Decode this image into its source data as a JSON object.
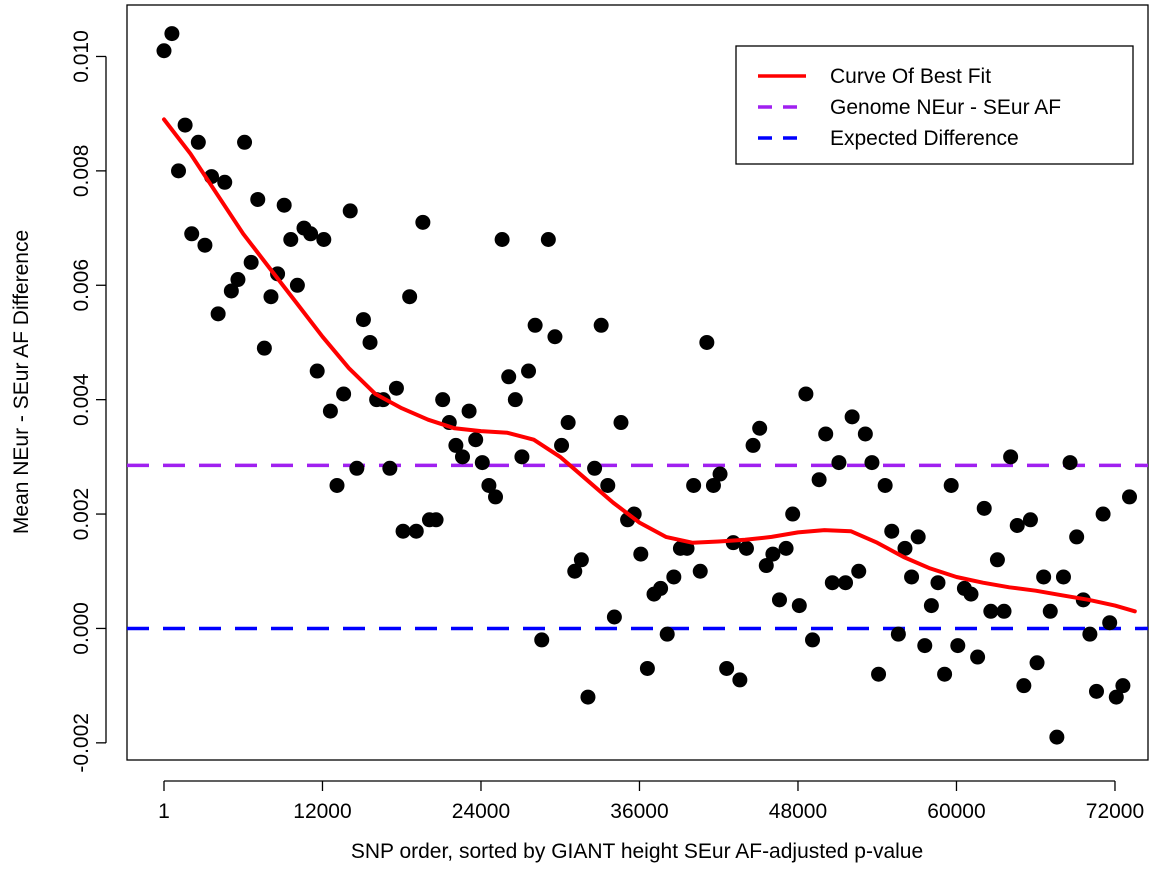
{
  "chart_data": {
    "type": "scatter",
    "title": "",
    "xlabel": "SNP order, sorted by GIANT height SEur AF-adjusted p-value",
    "ylabel": "Mean NEur - SEur AF Difference",
    "xlim": [
      -2800,
      74500
    ],
    "ylim": [
      -0.0023,
      0.0109
    ],
    "x_ticks": [
      1,
      12000,
      24000,
      36000,
      48000,
      60000,
      72000
    ],
    "x_tick_labels": [
      "1",
      "12000",
      "24000",
      "36000",
      "48000",
      "60000",
      "72000"
    ],
    "y_ticks": [
      -0.002,
      0.0,
      0.002,
      0.004,
      0.006,
      0.008,
      0.01
    ],
    "y_tick_labels": [
      "-0.002",
      "0.000",
      "0.002",
      "0.004",
      "0.006",
      "0.008",
      "0.010"
    ],
    "grid": false,
    "legend_position": "top-right",
    "series": [
      {
        "name": "Curve Of Best Fit",
        "kind": "line",
        "color": "#ff0000",
        "dash": "solid",
        "x": [
          1,
          2000,
          4000,
          6000,
          8000,
          10000,
          12000,
          14000,
          16000,
          18000,
          20000,
          22000,
          24000,
          26000,
          28000,
          30000,
          32000,
          34000,
          36000,
          38000,
          40000,
          42000,
          44000,
          46000,
          48000,
          50000,
          52000,
          54000,
          56000,
          58000,
          60000,
          62000,
          64000,
          66000,
          68000,
          70000,
          72000,
          73500
        ],
        "y": [
          0.0089,
          0.0083,
          0.0076,
          0.0069,
          0.0063,
          0.0057,
          0.0051,
          0.00455,
          0.0041,
          0.00385,
          0.00365,
          0.0035,
          0.00345,
          0.00342,
          0.0033,
          0.003,
          0.0026,
          0.0022,
          0.00185,
          0.0016,
          0.0015,
          0.00152,
          0.00155,
          0.0016,
          0.00168,
          0.00172,
          0.0017,
          0.0015,
          0.00125,
          0.00105,
          0.0009,
          0.0008,
          0.00072,
          0.00066,
          0.00058,
          0.0005,
          0.0004,
          0.0003
        ]
      },
      {
        "name": "Genome NEur - SEur AF",
        "kind": "hline",
        "color": "#a020f0",
        "dash": "dashed",
        "y": 0.00285
      },
      {
        "name": "Expected Difference",
        "kind": "hline",
        "color": "#0000ff",
        "dash": "dashed",
        "y": 0.0
      },
      {
        "name": "",
        "kind": "points",
        "color": "#000000",
        "points": [
          [
            1,
            0.0101
          ],
          [
            600,
            0.0104
          ],
          [
            1100,
            0.008
          ],
          [
            1600,
            0.0088
          ],
          [
            2100,
            0.0069
          ],
          [
            2600,
            0.0085
          ],
          [
            3100,
            0.0067
          ],
          [
            3600,
            0.0079
          ],
          [
            4100,
            0.0055
          ],
          [
            4600,
            0.0078
          ],
          [
            5100,
            0.0059
          ],
          [
            5600,
            0.0061
          ],
          [
            6100,
            0.0085
          ],
          [
            6600,
            0.0064
          ],
          [
            7100,
            0.0075
          ],
          [
            7600,
            0.0049
          ],
          [
            8100,
            0.0058
          ],
          [
            8600,
            0.0062
          ],
          [
            9100,
            0.0074
          ],
          [
            9600,
            0.0068
          ],
          [
            10100,
            0.006
          ],
          [
            10600,
            0.007
          ],
          [
            11100,
            0.0069
          ],
          [
            11600,
            0.0045
          ],
          [
            12100,
            0.0068
          ],
          [
            12600,
            0.0038
          ],
          [
            13100,
            0.0025
          ],
          [
            13600,
            0.0041
          ],
          [
            14100,
            0.0073
          ],
          [
            14600,
            0.0028
          ],
          [
            15100,
            0.0054
          ],
          [
            15600,
            0.005
          ],
          [
            16100,
            0.004
          ],
          [
            16600,
            0.004
          ],
          [
            17100,
            0.0028
          ],
          [
            17600,
            0.0042
          ],
          [
            18100,
            0.0017
          ],
          [
            18600,
            0.0058
          ],
          [
            19100,
            0.0017
          ],
          [
            19600,
            0.0071
          ],
          [
            20100,
            0.0019
          ],
          [
            20600,
            0.0019
          ],
          [
            21100,
            0.004
          ],
          [
            21600,
            0.0036
          ],
          [
            22100,
            0.0032
          ],
          [
            22600,
            0.003
          ],
          [
            23100,
            0.0038
          ],
          [
            23600,
            0.0033
          ],
          [
            24100,
            0.0029
          ],
          [
            24600,
            0.0025
          ],
          [
            25100,
            0.0023
          ],
          [
            25600,
            0.0068
          ],
          [
            26100,
            0.0044
          ],
          [
            26600,
            0.004
          ],
          [
            27100,
            0.003
          ],
          [
            27600,
            0.0045
          ],
          [
            28100,
            0.0053
          ],
          [
            28600,
            -0.0002
          ],
          [
            29100,
            0.0068
          ],
          [
            29600,
            0.0051
          ],
          [
            30100,
            0.0032
          ],
          [
            30600,
            0.0036
          ],
          [
            31100,
            0.001
          ],
          [
            31600,
            0.0012
          ],
          [
            32100,
            -0.0012
          ],
          [
            32600,
            0.0028
          ],
          [
            33100,
            0.0053
          ],
          [
            33600,
            0.0025
          ],
          [
            34100,
            0.0002
          ],
          [
            34600,
            0.0036
          ],
          [
            35100,
            0.0019
          ],
          [
            35600,
            0.002
          ],
          [
            36100,
            0.0013
          ],
          [
            36600,
            -0.0007
          ],
          [
            37100,
            0.0006
          ],
          [
            37600,
            0.0007
          ],
          [
            38100,
            -0.0001
          ],
          [
            38600,
            0.0009
          ],
          [
            39100,
            0.0014
          ],
          [
            39600,
            0.0014
          ],
          [
            40100,
            0.0025
          ],
          [
            40600,
            0.001
          ],
          [
            41100,
            0.005
          ],
          [
            41600,
            0.0025
          ],
          [
            42100,
            0.0027
          ],
          [
            42600,
            -0.0007
          ],
          [
            43100,
            0.0015
          ],
          [
            43600,
            -0.0009
          ],
          [
            44100,
            0.0014
          ],
          [
            44600,
            0.0032
          ],
          [
            45100,
            0.0035
          ],
          [
            45600,
            0.0011
          ],
          [
            46100,
            0.0013
          ],
          [
            46600,
            0.0005
          ],
          [
            47100,
            0.0014
          ],
          [
            47600,
            0.002
          ],
          [
            48100,
            0.0004
          ],
          [
            48600,
            0.0041
          ],
          [
            49100,
            -0.0002
          ],
          [
            49600,
            0.0026
          ],
          [
            50100,
            0.0034
          ],
          [
            50600,
            0.0008
          ],
          [
            51100,
            0.0029
          ],
          [
            51600,
            0.0008
          ],
          [
            52100,
            0.0037
          ],
          [
            52600,
            0.001
          ],
          [
            53100,
            0.0034
          ],
          [
            53600,
            0.0029
          ],
          [
            54100,
            -0.0008
          ],
          [
            54600,
            0.0025
          ],
          [
            55100,
            0.0017
          ],
          [
            55600,
            -0.0001
          ],
          [
            56100,
            0.0014
          ],
          [
            56600,
            0.0009
          ],
          [
            57100,
            0.0016
          ],
          [
            57600,
            -0.0003
          ],
          [
            58100,
            0.0004
          ],
          [
            58600,
            0.0008
          ],
          [
            59100,
            -0.0008
          ],
          [
            59600,
            0.0025
          ],
          [
            60100,
            -0.0003
          ],
          [
            60600,
            0.0007
          ],
          [
            61100,
            0.0006
          ],
          [
            61600,
            -0.0005
          ],
          [
            62100,
            0.0021
          ],
          [
            62600,
            0.0003
          ],
          [
            63100,
            0.0012
          ],
          [
            63600,
            0.0003
          ],
          [
            64100,
            0.003
          ],
          [
            64600,
            0.0018
          ],
          [
            65100,
            -0.001
          ],
          [
            65600,
            0.0019
          ],
          [
            66100,
            -0.0006
          ],
          [
            66600,
            0.0009
          ],
          [
            67100,
            0.0003
          ],
          [
            67600,
            -0.0019
          ],
          [
            68100,
            0.0009
          ],
          [
            68600,
            0.0029
          ],
          [
            69100,
            0.0016
          ],
          [
            69600,
            0.0005
          ],
          [
            70100,
            -0.0001
          ],
          [
            70600,
            -0.0011
          ],
          [
            71100,
            0.002
          ],
          [
            71600,
            0.0001
          ],
          [
            72100,
            -0.0012
          ],
          [
            72600,
            -0.001
          ],
          [
            73100,
            0.0023
          ]
        ]
      }
    ]
  }
}
